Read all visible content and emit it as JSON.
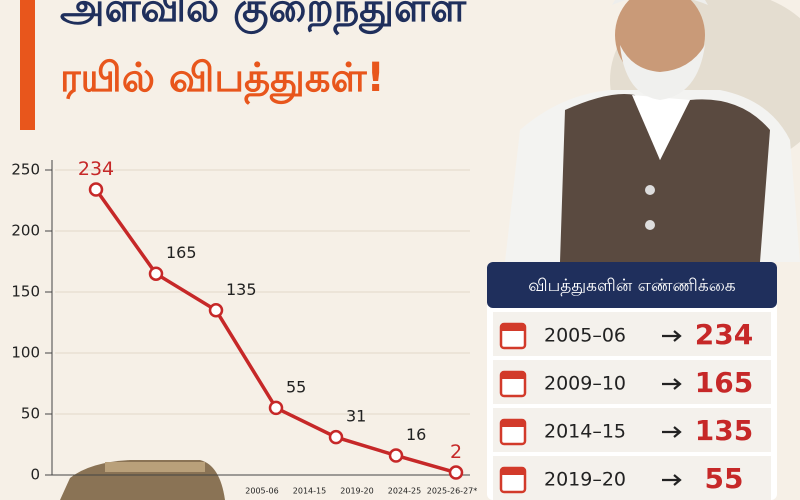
{
  "header": {
    "title_lines": [
      "அளவில் குறைந்துள்ள",
      "ரயில் விபத்துகள்!"
    ]
  },
  "chart_data": {
    "type": "line",
    "categories": [
      null,
      null,
      null,
      null,
      null,
      null,
      null
    ],
    "x_tick_labels": [
      "2005-06",
      "2014-15",
      "2019-20",
      "2024-25",
      "2025-26-27*"
    ],
    "values": [
      234,
      165,
      135,
      55,
      31,
      16,
      2
    ],
    "color": "#c62828",
    "ylim": [
      0,
      250
    ],
    "yticks": [
      0,
      50,
      100,
      150,
      200,
      250
    ],
    "grid": true
  },
  "table": {
    "header": "விபத்துகளின் எண்ணிக்கை",
    "rows": [
      {
        "year": "2005–06",
        "value": "234"
      },
      {
        "year": "2009–10",
        "value": "165"
      },
      {
        "year": "2014–15",
        "value": "135"
      },
      {
        "year": "2019–20",
        "value": "55"
      }
    ]
  }
}
